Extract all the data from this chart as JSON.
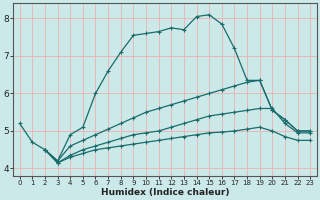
{
  "xlabel": "Humidex (Indice chaleur)",
  "background_color": "#cce9e9",
  "grid_color": "#e8b8b8",
  "line_color": "#1a6b6b",
  "spine_color": "#555555",
  "xlim": [
    -0.5,
    23.5
  ],
  "ylim": [
    3.8,
    8.4
  ],
  "xticks": [
    0,
    1,
    2,
    3,
    4,
    5,
    6,
    7,
    8,
    9,
    10,
    11,
    12,
    13,
    14,
    15,
    16,
    17,
    18,
    19,
    20,
    21,
    22,
    23
  ],
  "yticks": [
    4,
    5,
    6,
    7,
    8
  ],
  "line1_x": [
    0,
    1,
    2,
    3,
    4,
    5,
    6,
    7,
    8,
    9,
    10,
    11,
    12,
    13,
    14,
    15,
    16,
    17,
    18,
    19,
    20,
    21,
    22,
    23
  ],
  "line1_y": [
    5.2,
    4.7,
    4.5,
    4.2,
    4.9,
    5.1,
    6.0,
    6.6,
    7.1,
    7.55,
    7.6,
    7.65,
    7.75,
    7.7,
    8.05,
    8.1,
    7.85,
    7.2,
    6.35,
    6.35,
    5.55,
    5.3,
    5.0,
    5.0
  ],
  "line2_x": [
    2,
    3,
    4,
    5,
    6,
    7,
    8,
    9,
    10,
    11,
    12,
    13,
    14,
    15,
    16,
    17,
    18,
    19,
    20,
    21,
    22,
    23
  ],
  "line2_y": [
    4.5,
    4.2,
    4.6,
    4.75,
    4.9,
    5.05,
    5.2,
    5.35,
    5.5,
    5.6,
    5.7,
    5.8,
    5.9,
    6.0,
    6.1,
    6.2,
    6.3,
    6.35,
    5.55,
    5.3,
    5.0,
    5.0
  ],
  "line3_x": [
    2,
    3,
    4,
    5,
    6,
    7,
    8,
    9,
    10,
    11,
    12,
    13,
    14,
    15,
    16,
    17,
    18,
    19,
    20,
    21,
    22,
    23
  ],
  "line3_y": [
    4.5,
    4.15,
    4.35,
    4.5,
    4.6,
    4.7,
    4.8,
    4.9,
    4.95,
    5.0,
    5.1,
    5.2,
    5.3,
    5.4,
    5.45,
    5.5,
    5.55,
    5.6,
    5.6,
    5.2,
    4.95,
    4.95
  ],
  "line4_x": [
    2,
    3,
    4,
    5,
    6,
    7,
    8,
    9,
    10,
    11,
    12,
    13,
    14,
    15,
    16,
    17,
    18,
    19,
    20,
    21,
    22,
    23
  ],
  "line4_y": [
    4.5,
    4.15,
    4.3,
    4.4,
    4.5,
    4.55,
    4.6,
    4.65,
    4.7,
    4.75,
    4.8,
    4.85,
    4.9,
    4.95,
    4.97,
    5.0,
    5.05,
    5.1,
    5.0,
    4.85,
    4.75,
    4.75
  ],
  "xlabel_fontsize": 6.5,
  "tick_fontsize_x": 5.0,
  "tick_fontsize_y": 6.5
}
